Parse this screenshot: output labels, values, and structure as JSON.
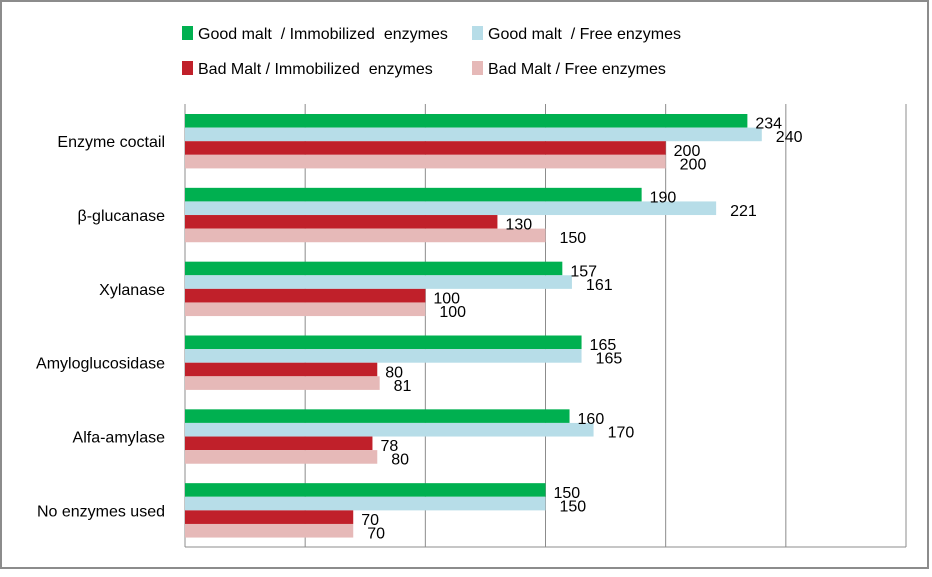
{
  "chart_data": {
    "type": "bar",
    "orientation": "horizontal",
    "categories": [
      "Enzyme coctail",
      "β-glucanase",
      "Xylanase",
      "Amyloglucosidase",
      "Alfa-amylase",
      "No enzymes used"
    ],
    "series": [
      {
        "name": "Good malt  / Immobilized  enzymes",
        "color": "#00b050",
        "values": [
          234,
          190,
          157,
          165,
          160,
          150
        ]
      },
      {
        "name": "Good malt  / Free enzymes",
        "color": "#b7dde8",
        "values": [
          240,
          221,
          161,
          165,
          170,
          150
        ]
      },
      {
        "name": "Bad Malt / Immobilized  enzymes",
        "color": "#c0202a",
        "values": [
          200,
          130,
          100,
          80,
          78,
          70
        ]
      },
      {
        "name": "Bad Malt / Free enzymes",
        "color": "#e6b9b8",
        "values": [
          200,
          150,
          100,
          81,
          80,
          70
        ]
      }
    ],
    "xlim": [
      0,
      300
    ],
    "x_gridlines": [
      0,
      50,
      100,
      150,
      200,
      250,
      300
    ],
    "grid": true,
    "tick_labels_shown": false,
    "data_labels": true,
    "legend_placement": "top",
    "title": "",
    "xlabel": "",
    "ylabel": ""
  }
}
